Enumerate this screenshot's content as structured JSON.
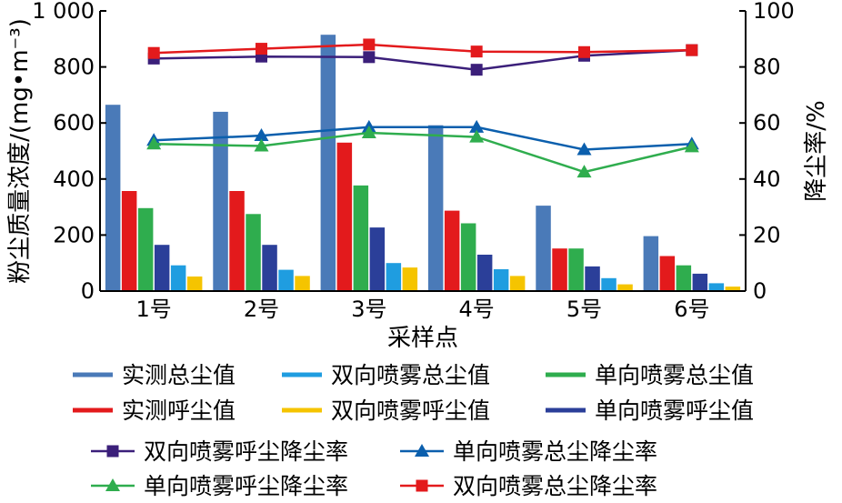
{
  "chart_data": {
    "type": "bar",
    "categories": [
      "1号",
      "2号",
      "3号",
      "4号",
      "5号",
      "6号"
    ],
    "xlabel": "采样点",
    "ylabel": "粉尘质量浓度/(mg•m⁻³)",
    "y2label": "降尘率/%",
    "ylim": [
      0,
      1000
    ],
    "y2lim": [
      0,
      100
    ],
    "yticks": [
      "0",
      "200",
      "400",
      "600",
      "800",
      "1 000"
    ],
    "y2ticks": [
      "0",
      "20",
      "40",
      "60",
      "80",
      "100"
    ],
    "grid": false,
    "legend_position": "bottom",
    "bar_series": [
      {
        "name": "实测总尘值",
        "color": "#4a7ab8",
        "values": [
          665,
          640,
          915,
          592,
          305,
          196
        ]
      },
      {
        "name": "实测呼尘值",
        "color": "#e31a1c",
        "values": [
          357,
          357,
          530,
          287,
          152,
          125
        ]
      },
      {
        "name": "单向喷雾总尘值",
        "color": "#2fad4e",
        "values": [
          296,
          275,
          377,
          242,
          152,
          92
        ]
      },
      {
        "name": "单向喷雾呼尘值",
        "color": "#2b3f99",
        "values": [
          165,
          165,
          227,
          130,
          88,
          62
        ]
      },
      {
        "name": "双向喷雾总尘值",
        "color": "#1f9de0",
        "values": [
          92,
          76,
          100,
          78,
          46,
          28
        ]
      },
      {
        "name": "双向喷雾呼尘值",
        "color": "#f5c400",
        "values": [
          52,
          54,
          84,
          54,
          24,
          16
        ]
      }
    ],
    "line_series": [
      {
        "name": "双向喷雾呼尘降尘率",
        "color": "#3b1f7a",
        "marker": "square",
        "values": [
          83,
          83.7,
          83.5,
          79,
          84,
          86
        ]
      },
      {
        "name": "单向喷雾总尘降尘率",
        "color": "#0b5fad",
        "marker": "triangle",
        "values": [
          53.8,
          55.5,
          58.5,
          58.5,
          50.5,
          52.5
        ]
      },
      {
        "name": "单向喷雾呼尘降尘率",
        "color": "#2fad4e",
        "marker": "triangle",
        "values": [
          52.5,
          51.8,
          56.5,
          55,
          42.5,
          51.5
        ]
      },
      {
        "name": "双向喷雾总尘降尘率",
        "color": "#e31a1c",
        "marker": "square",
        "values": [
          85,
          86.5,
          88,
          85.5,
          85.3,
          86
        ]
      }
    ],
    "legend_rows": [
      [
        {
          "name": "实测总尘值",
          "color": "#4a7ab8",
          "kind": "bar"
        },
        {
          "name": "双向喷雾总尘值",
          "color": "#1f9de0",
          "kind": "bar"
        },
        {
          "name": "单向喷雾总尘值",
          "color": "#2fad4e",
          "kind": "bar"
        }
      ],
      [
        {
          "name": "实测呼尘值",
          "color": "#e31a1c",
          "kind": "bar"
        },
        {
          "name": "双向喷雾呼尘值",
          "color": "#f5c400",
          "kind": "bar"
        },
        {
          "name": "单向喷雾呼尘值",
          "color": "#2b3f99",
          "kind": "bar"
        }
      ],
      [
        {
          "name": "双向喷雾呼尘降尘率",
          "color": "#3b1f7a",
          "kind": "line",
          "marker": "square"
        },
        {
          "name": "单向喷雾总尘降尘率",
          "color": "#0b5fad",
          "kind": "line",
          "marker": "triangle"
        }
      ],
      [
        {
          "name": "单向喷雾呼尘降尘率",
          "color": "#2fad4e",
          "kind": "line",
          "marker": "triangle"
        },
        {
          "name": "双向喷雾总尘降尘率",
          "color": "#e31a1c",
          "kind": "line",
          "marker": "square"
        }
      ]
    ]
  }
}
